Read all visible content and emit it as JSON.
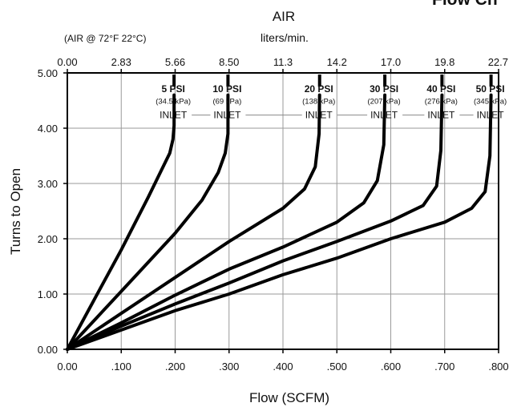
{
  "chart_data": {
    "type": "line",
    "corner_text": "Flow Ch",
    "top_axis": {
      "title": "AIR",
      "units": "liters/min.",
      "note": "(AIR @ 72°F  22°C)",
      "ticks": [
        "0.00",
        "2.83",
        "5.66",
        "8.50",
        "11.3",
        "14.2",
        "17.0",
        "19.8",
        "22.7"
      ],
      "lim": [
        0,
        22.7
      ]
    },
    "xlabel": "Flow (SCFM)",
    "ylabel": "Turns to Open",
    "xlim": [
      0,
      0.8
    ],
    "ylim": [
      0,
      5
    ],
    "x_ticks": [
      "0.00",
      ".100",
      ".200",
      ".300",
      ".400",
      ".500",
      ".600",
      ".700",
      ".800"
    ],
    "y_ticks": [
      "0.00",
      "1.00",
      "2.00",
      "3.00",
      "4.00",
      "5.00"
    ],
    "grid": true,
    "inlet_text": "INLET",
    "series": [
      {
        "name": "5 PSI",
        "sub": "(34.5 kPa)",
        "x": [
          0,
          0.05,
          0.1,
          0.15,
          0.175,
          0.19,
          0.196,
          0.198,
          0.198
        ],
        "y": [
          0,
          0.9,
          1.8,
          2.75,
          3.25,
          3.55,
          3.8,
          4.05,
          4.6
        ]
      },
      {
        "name": "10 PSI",
        "sub": "(69 kPa)",
        "x": [
          0,
          0.1,
          0.2,
          0.25,
          0.28,
          0.293,
          0.298,
          0.298
        ],
        "y": [
          0,
          1.05,
          2.1,
          2.7,
          3.2,
          3.55,
          3.9,
          4.6
        ]
      },
      {
        "name": "20 PSI",
        "sub": "(138 kPa)",
        "x": [
          0,
          0.1,
          0.2,
          0.3,
          0.4,
          0.44,
          0.46,
          0.467,
          0.468
        ],
        "y": [
          0,
          0.65,
          1.3,
          1.95,
          2.55,
          2.9,
          3.3,
          3.9,
          4.6
        ]
      },
      {
        "name": "30 PSI",
        "sub": "(207 kPa)",
        "x": [
          0,
          0.1,
          0.2,
          0.3,
          0.4,
          0.5,
          0.55,
          0.575,
          0.587,
          0.589
        ],
        "y": [
          0,
          0.48,
          0.98,
          1.45,
          1.85,
          2.3,
          2.65,
          3.05,
          3.7,
          4.6
        ]
      },
      {
        "name": "40 PSI",
        "sub": "(276 kPa)",
        "x": [
          0,
          0.1,
          0.2,
          0.3,
          0.4,
          0.5,
          0.6,
          0.66,
          0.685,
          0.693,
          0.695
        ],
        "y": [
          0,
          0.42,
          0.82,
          1.2,
          1.6,
          1.95,
          2.32,
          2.6,
          2.95,
          3.6,
          4.6
        ]
      },
      {
        "name": "50 PSI",
        "sub": "(345 kPa)",
        "x": [
          0,
          0.1,
          0.2,
          0.3,
          0.4,
          0.5,
          0.6,
          0.7,
          0.75,
          0.775,
          0.784,
          0.786
        ],
        "y": [
          0,
          0.35,
          0.7,
          1.0,
          1.35,
          1.65,
          2.0,
          2.3,
          2.55,
          2.85,
          3.5,
          4.6
        ]
      }
    ]
  }
}
